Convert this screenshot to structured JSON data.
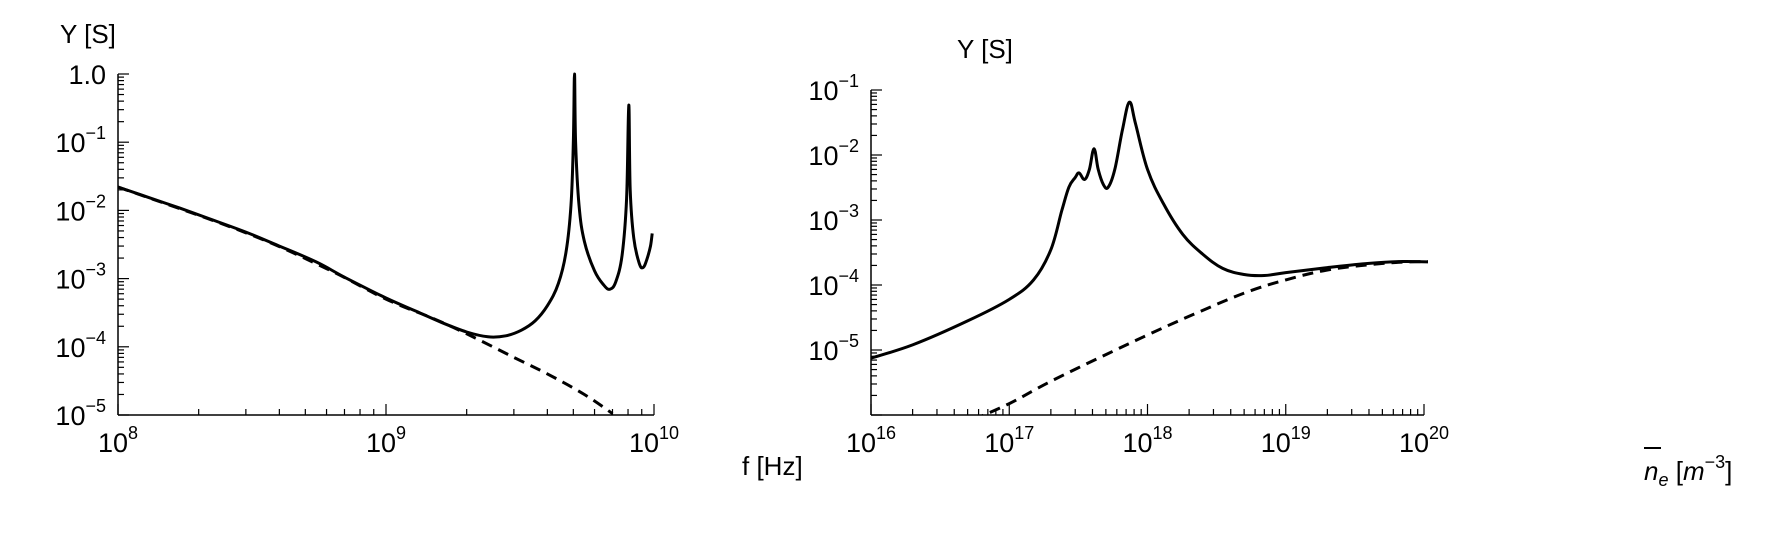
{
  "chart_data": [
    {
      "type": "line",
      "xlabel": "f [Hz]",
      "ylabel": "Y [S]",
      "xscale": "log",
      "yscale": "log",
      "xlim": [
        100000000.0,
        10000000000.0
      ],
      "ylim": [
        1e-05,
        1.0
      ],
      "grid": false,
      "x_ticks": [
        {
          "value": 100000000.0,
          "base": "10",
          "exp": "8"
        },
        {
          "value": 1000000000.0,
          "base": "10",
          "exp": "9"
        },
        {
          "value": 10000000000.0,
          "base": "10",
          "exp": "10"
        }
      ],
      "y_ticks": [
        {
          "value": 1e-05,
          "base": "10",
          "exp": "-5"
        },
        {
          "value": 0.0001,
          "base": "10",
          "exp": "-4"
        },
        {
          "value": 0.001,
          "base": "10",
          "exp": "-3"
        },
        {
          "value": 0.01,
          "base": "10",
          "exp": "-2"
        },
        {
          "value": 0.1,
          "base": "10",
          "exp": "-1"
        },
        {
          "value": 1.0,
          "text": "1.0"
        }
      ],
      "series": [
        {
          "style": "solid",
          "color": "#000000",
          "points": [
            [
              100000000.0,
              0.022
            ],
            [
              130000000.0,
              0.0155
            ],
            [
              170000000.0,
              0.0108
            ],
            [
              220000000.0,
              0.0075
            ],
            [
              300000000.0,
              0.0048
            ],
            [
              400000000.0,
              0.003
            ],
            [
              550000000.0,
              0.00175
            ],
            [
              700000000.0,
              0.00105
            ],
            [
              1000000000.0,
              0.00052
            ],
            [
              1300000000.0,
              0.00033
            ],
            [
              1600000000.0,
              0.00023
            ],
            [
              2000000000.0,
              0.000165
            ],
            [
              2400000000.0,
              0.00014
            ],
            [
              2800000000.0,
              0.000145
            ],
            [
              3200000000.0,
              0.000175
            ],
            [
              3600000000.0,
              0.00024
            ],
            [
              4000000000.0,
              0.0004
            ],
            [
              4400000000.0,
              0.00085
            ],
            [
              4700000000.0,
              0.0025
            ],
            [
              4900000000.0,
              0.012
            ],
            [
              5000000000.0,
              0.095
            ],
            [
              5050000000.0,
              1.0
            ],
            [
              5100000000.0,
              0.1
            ],
            [
              5250000000.0,
              0.012
            ],
            [
              5500000000.0,
              0.0035
            ],
            [
              6000000000.0,
              0.0013
            ],
            [
              6500000000.0,
              0.0008
            ],
            [
              6850000000.0,
              0.0007
            ],
            [
              7200000000.0,
              0.0009
            ],
            [
              7600000000.0,
              0.0022
            ],
            [
              7900000000.0,
              0.015
            ],
            [
              8050000000.0,
              0.35
            ],
            [
              8150000000.0,
              0.02
            ],
            [
              8400000000.0,
              0.004
            ],
            [
              8800000000.0,
              0.0017
            ],
            [
              9100000000.0,
              0.00145
            ],
            [
              9400000000.0,
              0.0019
            ],
            [
              9700000000.0,
              0.003
            ],
            [
              9850000000.0,
              0.0046
            ]
          ]
        },
        {
          "style": "dashed",
          "color": "#000000",
          "points": [
            [
              100000000.0,
              0.022
            ],
            [
              300000000.0,
              0.0047
            ],
            [
              600000000.0,
              0.0014
            ],
            [
              1000000000.0,
              0.0005
            ],
            [
              1500000000.0,
              0.00026
            ],
            [
              2000000000.0,
              0.000155
            ],
            [
              3000000000.0,
              7e-05
            ],
            [
              4000000000.0,
              4e-05
            ],
            [
              5500000000.0,
              2e-05
            ],
            [
              7000000000.0,
              1.05e-05
            ]
          ]
        }
      ]
    },
    {
      "type": "line",
      "xlabel": "n_e [m^-3]",
      "ylabel": "Y [S]",
      "xscale": "log",
      "yscale": "log",
      "xlim": [
        1e+16,
        1e+20
      ],
      "ylim": [
        1e-06,
        0.1
      ],
      "grid": false,
      "x_ticks": [
        {
          "value": 1e+16,
          "base": "10",
          "exp": "16"
        },
        {
          "value": 1e+17,
          "base": "10",
          "exp": "17"
        },
        {
          "value": 1e+18,
          "base": "10",
          "exp": "18"
        },
        {
          "value": 1e+19,
          "base": "10",
          "exp": "19"
        },
        {
          "value": 1e+20,
          "base": "10",
          "exp": "20"
        }
      ],
      "y_ticks": [
        {
          "value": 1e-05,
          "base": "10",
          "exp": "-5"
        },
        {
          "value": 0.0001,
          "base": "10",
          "exp": "-4"
        },
        {
          "value": 0.001,
          "base": "10",
          "exp": "-3"
        },
        {
          "value": 0.01,
          "base": "10",
          "exp": "-2"
        },
        {
          "value": 0.1,
          "base": "10",
          "exp": "-1"
        }
      ],
      "series": [
        {
          "style": "solid",
          "color": "#000000",
          "points": [
            [
              1e+16,
              7.5e-06
            ],
            [
              2e+16,
              1.2e-05
            ],
            [
              5e+16,
              2.8e-05
            ],
            [
              1e+17,
              6e-05
            ],
            [
              1.5e+17,
              0.00012
            ],
            [
              2e+17,
              0.00035
            ],
            [
              2.4e+17,
              0.0014
            ],
            [
              2.7e+17,
              0.0032
            ],
            [
              3e+17,
              0.0045
            ],
            [
              3.2e+17,
              0.0053
            ],
            [
              3.5e+17,
              0.0042
            ],
            [
              3.8e+17,
              0.006
            ],
            [
              4.1e+17,
              0.0125
            ],
            [
              4.4e+17,
              0.006
            ],
            [
              4.8e+17,
              0.0035
            ],
            [
              5.2e+17,
              0.0032
            ],
            [
              5.8e+17,
              0.006
            ],
            [
              6.6e+17,
              0.025
            ],
            [
              7.4e+17,
              0.065
            ],
            [
              8.2e+17,
              0.03
            ],
            [
              1e+18,
              0.006
            ],
            [
              1.3e+18,
              0.0018
            ],
            [
              1.8e+18,
              0.0006
            ],
            [
              2.5e+18,
              0.0003
            ],
            [
              3.5e+18,
              0.00018
            ],
            [
              5e+18,
              0.000145
            ],
            [
              7e+18,
              0.00014
            ],
            [
              1e+19,
              0.000155
            ],
            [
              2e+19,
              0.000185
            ],
            [
              4e+19,
              0.000215
            ],
            [
              7e+19,
              0.00023
            ],
            [
              1.2e+20,
              0.000225
            ]
          ]
        },
        {
          "style": "dashed",
          "color": "#000000",
          "points": [
            [
              5.5e+16,
              8.5e-07
            ],
            [
              1e+17,
              1.5e-06
            ],
            [
              2e+17,
              3.3e-06
            ],
            [
              5e+17,
              8.5e-06
            ],
            [
              1e+18,
              1.7e-05
            ],
            [
              2e+18,
              3.3e-05
            ],
            [
              5e+18,
              7.5e-05
            ],
            [
              1e+19,
              0.00012
            ],
            [
              2e+19,
              0.00017
            ],
            [
              4e+19,
              0.000205
            ],
            [
              7e+19,
              0.000225
            ],
            [
              1.2e+20,
              0.00023
            ]
          ]
        }
      ]
    }
  ]
}
